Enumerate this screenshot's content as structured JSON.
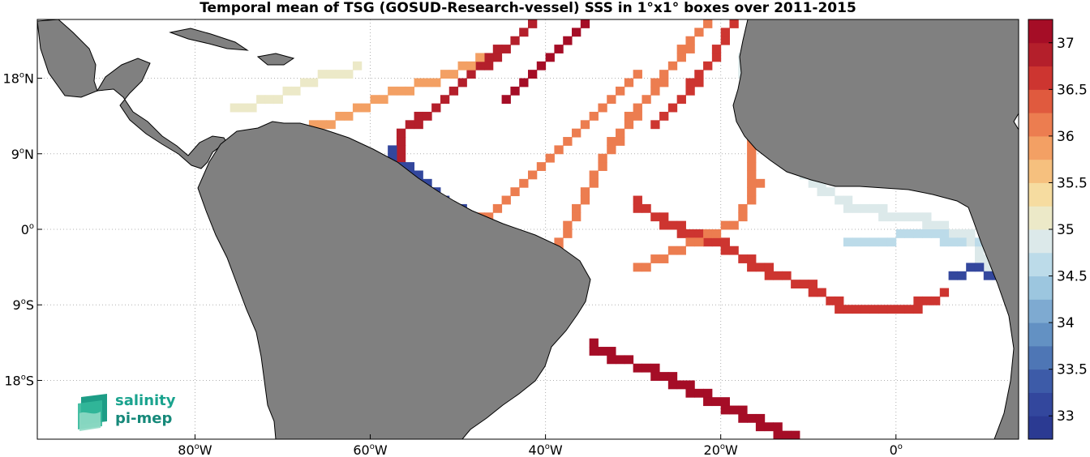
{
  "title": "Temporal mean of TSG (GOSUD-Research-vessel) SSS in 1°x1° boxes over 2011-2015",
  "map": {
    "lon_range": [
      -98,
      14
    ],
    "lat_range": [
      -25,
      25
    ],
    "lon_ticks": [
      {
        "lon": -80,
        "num": "80",
        "deg": "o",
        "hemi": "W"
      },
      {
        "lon": -60,
        "num": "60",
        "deg": "o",
        "hemi": "W"
      },
      {
        "lon": -40,
        "num": "40",
        "deg": "o",
        "hemi": "W"
      },
      {
        "lon": -20,
        "num": "20",
        "deg": "o",
        "hemi": "W"
      },
      {
        "lon": 0,
        "num": "0",
        "deg": "o",
        "hemi": ""
      }
    ],
    "lat_ticks": [
      {
        "lat": 18,
        "num": "18",
        "deg": "o",
        "hemi": "N"
      },
      {
        "lat": 9,
        "num": "9",
        "deg": "o",
        "hemi": "N"
      },
      {
        "lat": 0,
        "num": "0",
        "deg": "o",
        "hemi": ""
      },
      {
        "lat": -9,
        "num": "9",
        "deg": "o",
        "hemi": "S"
      },
      {
        "lat": -18,
        "num": "18",
        "deg": "o",
        "hemi": "S"
      }
    ],
    "land_color": "#808080",
    "grid": "dotted"
  },
  "colorbar": {
    "min": 32.75,
    "max": 37.25,
    "tick_labels": [
      "33",
      "33.5",
      "34",
      "34.5",
      "35",
      "35.5",
      "36",
      "36.5",
      "37"
    ],
    "tick_values": [
      33,
      33.5,
      34,
      34.5,
      35,
      35.5,
      36,
      36.5,
      37
    ],
    "colors": [
      "#2b3a92",
      "#33479d",
      "#3d5ba8",
      "#4e76b5",
      "#6391c3",
      "#7eaad1",
      "#9cc6df",
      "#bcdbe9",
      "#dce9ea",
      "#ece9c8",
      "#f6dca0",
      "#f6c07e",
      "#f3a064",
      "#ec7d50",
      "#e05a3e",
      "#cd3530",
      "#b41f2b",
      "#a50d26"
    ]
  },
  "logo": {
    "line1": "salinity",
    "line2": "pi-mep"
  },
  "chart_data": {
    "type": "heatmap",
    "title": "Temporal mean of TSG (GOSUD-Research-vessel) SSS in 1°x1° boxes over 2011-2015",
    "colorbar_range": [
      32.75,
      37.25
    ],
    "tracks": [
      {
        "points": [
          [
            -30,
            18
          ],
          [
            -35,
            13
          ],
          [
            -40,
            8
          ],
          [
            -45,
            3
          ],
          [
            -50,
            -1
          ],
          [
            -53,
            -4
          ]
        ],
        "value": 36.1
      },
      {
        "points": [
          [
            -22,
            24
          ],
          [
            -28,
            16
          ],
          [
            -33,
            9
          ],
          [
            -36,
            3
          ],
          [
            -39,
            -3
          ],
          [
            -42,
            -8
          ]
        ],
        "value": 36.0
      },
      {
        "points": [
          [
            -42,
            24
          ],
          [
            -48,
            19
          ],
          [
            -52,
            15
          ],
          [
            -56,
            12
          ],
          [
            -57,
            8
          ]
        ],
        "value": 36.8
      },
      {
        "points": [
          [
            -36,
            24
          ],
          [
            -40,
            20
          ],
          [
            -45,
            15
          ]
        ],
        "value": 37.0
      },
      {
        "points": [
          [
            -35,
            -14
          ],
          [
            -28,
            -17
          ],
          [
            -22,
            -20
          ],
          [
            -16,
            -23
          ],
          [
            -12,
            -25
          ]
        ],
        "value": 37.1
      },
      {
        "points": [
          [
            -58,
            9
          ],
          [
            -54,
            5
          ],
          [
            -50,
            2
          ]
        ],
        "value": 33.0
      },
      {
        "points": [
          [
            -30,
            3
          ],
          [
            -25,
            0
          ],
          [
            -20,
            -2
          ],
          [
            -15,
            -5
          ],
          [
            -10,
            -7
          ],
          [
            -5,
            -10
          ],
          [
            0,
            -10
          ],
          [
            5,
            -8
          ]
        ],
        "value": 36.5
      },
      {
        "points": [
          [
            -28,
            12
          ],
          [
            -24,
            16
          ],
          [
            -21,
            20
          ],
          [
            -19,
            24
          ]
        ],
        "value": 36.7
      },
      {
        "points": [
          [
            -18,
            20
          ],
          [
            -16,
            15
          ],
          [
            -13,
            10
          ],
          [
            -10,
            6
          ],
          [
            -6,
            3
          ],
          [
            -2,
            2
          ],
          [
            3,
            1
          ],
          [
            8,
            -1
          ],
          [
            11,
            -5
          ]
        ],
        "value": 34.9
      },
      {
        "points": [
          [
            -30,
            -5
          ],
          [
            -24,
            -2
          ],
          [
            -18,
            1
          ],
          [
            -16,
            5
          ],
          [
            -17,
            10
          ]
        ],
        "value": 36.2
      },
      {
        "points": [
          [
            -70,
            11
          ],
          [
            -64,
            13
          ],
          [
            -58,
            16
          ],
          [
            -52,
            18
          ],
          [
            -46,
            21
          ]
        ],
        "value": 35.9
      },
      {
        "points": [
          [
            -76,
            14
          ],
          [
            -70,
            16
          ],
          [
            -66,
            18
          ],
          [
            -62,
            19
          ]
        ],
        "value": 35.2
      },
      {
        "points": [
          [
            -6,
            -2
          ],
          [
            0,
            -1
          ],
          [
            5,
            -1
          ],
          [
            10,
            -2
          ]
        ],
        "value": 34.6
      },
      {
        "points": [
          [
            6,
            -6
          ],
          [
            8,
            -5
          ],
          [
            10,
            -5
          ],
          [
            11,
            -6
          ]
        ],
        "value": 33.2
      }
    ]
  }
}
